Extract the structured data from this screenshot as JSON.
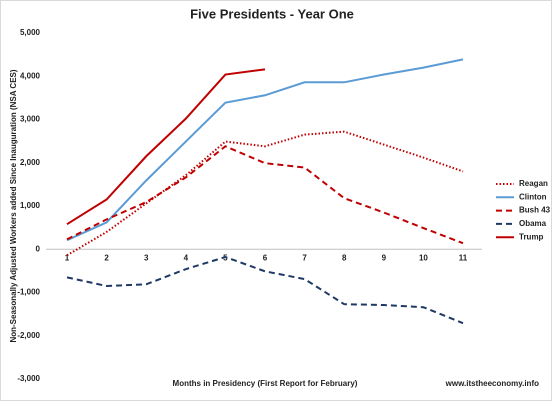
{
  "chart_data": {
    "type": "line",
    "title": "Five Presidents - Year One",
    "y_label": "Non-Seasonally Adjusted Workers added Since Inauguration (NSA CES)",
    "x_label": "Months in Presidency (First Report for February)",
    "source": "www.itstheeconomy.info",
    "categories": [
      "1",
      "2",
      "3",
      "4",
      "5",
      "6",
      "7",
      "8",
      "9",
      "10",
      "11"
    ],
    "ylim": [
      -3000,
      5000
    ],
    "yticks": [
      {
        "value": -3000,
        "label": "-3,000"
      },
      {
        "value": -2000,
        "label": "-2,000"
      },
      {
        "value": -1000,
        "label": "-1,000"
      },
      0,
      {
        "value": 1000,
        "label": "1,000"
      },
      {
        "value": 2000,
        "label": "2,000"
      },
      {
        "value": 3000,
        "label": "3,000"
      },
      {
        "value": 4000,
        "label": "4,000"
      },
      {
        "value": 5000,
        "label": "5,000"
      }
    ],
    "grid": false,
    "legend": "right",
    "series": [
      {
        "name": "Reagan",
        "color": "#c00000",
        "dash": "dotted",
        "values": [
          -140,
          400,
          1060,
          1710,
          2490,
          2380,
          2650,
          2720,
          2420,
          2120,
          1800
        ]
      },
      {
        "name": "Clinton",
        "color": "#5b9bd5",
        "dash": "solid",
        "values": [
          210,
          620,
          1590,
          2490,
          3390,
          3560,
          3860,
          3860,
          4040,
          4200,
          4390
        ]
      },
      {
        "name": "Bush 43",
        "color": "#c00000",
        "dash": "dashed",
        "values": [
          230,
          690,
          1090,
          1660,
          2380,
          1990,
          1890,
          1180,
          850,
          490,
          140
        ]
      },
      {
        "name": "Obama",
        "color": "#1f3864",
        "dash": "dashed",
        "values": [
          -650,
          -850,
          -810,
          -460,
          -180,
          -510,
          -690,
          -1270,
          -1290,
          -1340,
          -1710
        ]
      },
      {
        "name": "Trump",
        "color": "#c00000",
        "dash": "solid",
        "values": [
          580,
          1150,
          2150,
          3020,
          4040,
          4160,
          null,
          null,
          null,
          null,
          null
        ]
      }
    ]
  }
}
